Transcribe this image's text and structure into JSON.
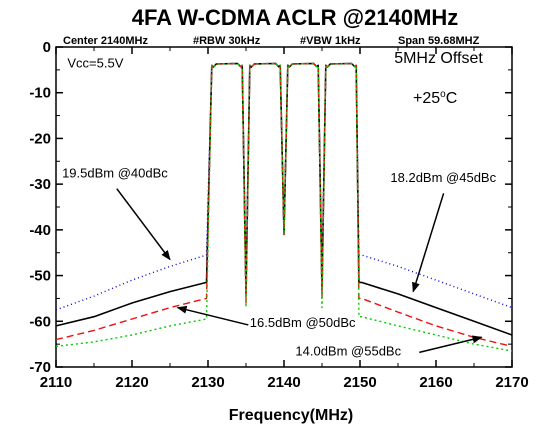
{
  "chart_data": {
    "type": "line",
    "title": "4FA W-CDMA ACLR @2140MHz",
    "settings": {
      "center": "Center 2140MHz",
      "rbw": "#RBW 30kHz",
      "vbw": "#VBW 1kHz",
      "span": "Span 59.68MHZ"
    },
    "xlabel": "Frequency(MHz)",
    "ylabel": "",
    "xlim": [
      2110,
      2170
    ],
    "ylim": [
      -70,
      0
    ],
    "xticks": [
      "2110",
      "2120",
      "2130",
      "2140",
      "2150",
      "2160",
      "2170"
    ],
    "yticks": [
      "0",
      "-10",
      "-20",
      "-30",
      "-40",
      "-50",
      "-60",
      "-70"
    ],
    "grid": false,
    "carriers": [
      {
        "low": 2130.5,
        "high": 2134.5,
        "top": -4
      },
      {
        "low": 2135.5,
        "high": 2139.5,
        "top": -4
      },
      {
        "low": 2140.5,
        "high": 2144.5,
        "top": -4
      },
      {
        "low": 2145.5,
        "high": 2149.5,
        "top": -4
      }
    ],
    "notches": [
      {
        "x": 2135,
        "y": [
          -49,
          -54,
          -56,
          -57
        ]
      },
      {
        "x": 2140,
        "y": [
          -41,
          -41,
          -41,
          -41
        ]
      },
      {
        "x": 2145,
        "y": [
          -50,
          -53,
          -55,
          -57
        ]
      }
    ],
    "series": [
      {
        "color": "#0000dd",
        "dash": "1,3",
        "lower": {
          "x": [
            2110,
            2115,
            2120,
            2125,
            2129.8
          ],
          "y": [
            -57.5,
            -54.5,
            -51,
            -48,
            -45.5
          ]
        },
        "upper": {
          "x": [
            2150.2,
            2155,
            2160,
            2165,
            2170
          ],
          "y": [
            -45.5,
            -48,
            -51,
            -54,
            -57
          ]
        }
      },
      {
        "color": "#000000",
        "dash": "",
        "lower": {
          "x": [
            2110,
            2115,
            2120,
            2125,
            2129.8
          ],
          "y": [
            -61,
            -59,
            -56,
            -53.5,
            -51.5
          ]
        },
        "upper": {
          "x": [
            2150.2,
            2155,
            2160,
            2165,
            2170
          ],
          "y": [
            -51.5,
            -54,
            -57,
            -60,
            -63
          ]
        }
      },
      {
        "color": "#ee1111",
        "dash": "7,4",
        "lower": {
          "x": [
            2110,
            2115,
            2120,
            2125,
            2129.8
          ],
          "y": [
            -64,
            -62,
            -59.5,
            -57,
            -55
          ]
        },
        "upper": {
          "x": [
            2150.2,
            2155,
            2160,
            2165,
            2170
          ],
          "y": [
            -55,
            -58,
            -61,
            -63.5,
            -65.5
          ]
        }
      },
      {
        "color": "#00cc00",
        "dash": "2,3",
        "lower": {
          "x": [
            2110,
            2115,
            2120,
            2125,
            2129.8
          ],
          "y": [
            -65.5,
            -64.5,
            -63,
            -61,
            -59.5
          ]
        },
        "upper": {
          "x": [
            2150.2,
            2155,
            2160,
            2165,
            2170
          ],
          "y": [
            -59,
            -61,
            -63,
            -65,
            -66.5
          ]
        }
      }
    ],
    "annotations": [
      {
        "text": "Vcc=5.5V",
        "x": 2111.5,
        "y": -4.5,
        "size": "small",
        "arrow": null
      },
      {
        "text": "5MHz Offset",
        "x": 2154.5,
        "y": -3.5,
        "size": "big",
        "arrow": null
      },
      {
        "text": "19.5dBm @40dBc",
        "x": 2110.8,
        "y": -28.5,
        "size": "small",
        "arrow": {
          "from": [
            2118,
            -31
          ],
          "to": [
            2125,
            -46.5
          ]
        }
      },
      {
        "text": "18.2dBm @45dBc",
        "x": 2154,
        "y": -29.5,
        "size": "small",
        "arrow": {
          "from": [
            2161,
            -32
          ],
          "to": [
            2157,
            -53.5
          ]
        }
      },
      {
        "text": "16.5dBm @50dBc",
        "x": 2135.5,
        "y": -61.3,
        "size": "small",
        "arrow": {
          "from": [
            2135.3,
            -60.8
          ],
          "to": [
            2126,
            -57
          ]
        }
      },
      {
        "text": "14.0dBm @55dBc",
        "x": 2141.5,
        "y": -67.5,
        "size": "small",
        "arrow": {
          "from": [
            2157.8,
            -66.8
          ],
          "to": [
            2166,
            -63.5
          ]
        }
      }
    ],
    "temperature": {
      "value": "+25",
      "degree": "o",
      "unit": "C"
    }
  }
}
